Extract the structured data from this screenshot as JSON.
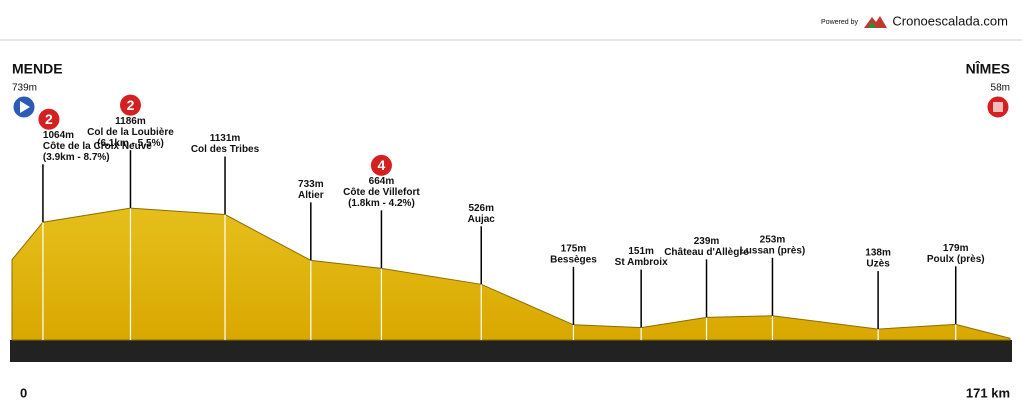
{
  "header": {
    "powered_by": "Powered by",
    "brand": "Cronoescalada.com"
  },
  "chart_data": {
    "type": "profile",
    "xlim": [
      0,
      171
    ],
    "ylim": [
      0,
      1300
    ],
    "color": "#e6bf1c",
    "points": [
      {
        "km": 0,
        "altitude": 739,
        "altitude_label": "739m",
        "name": "MENDE"
      },
      {
        "km": 5.3,
        "altitude": 1064,
        "altitude_label": "1064m",
        "name": "Côte de la Croix Neuve",
        "detail": "(3.9km - 8.7%)",
        "category": "2"
      },
      {
        "km": 20.3,
        "altitude": 1186,
        "altitude_label": "1186m",
        "name": "Col de la Loubière",
        "detail": "(6.1km - 5.5%)",
        "category": "2"
      },
      {
        "km": 36.5,
        "altitude": 1131,
        "altitude_label": "1131m",
        "name": "Col des Tribes"
      },
      {
        "km": 51.2,
        "altitude": 733,
        "altitude_label": "733m",
        "name": "Altier"
      },
      {
        "km": 63.3,
        "altitude": 664,
        "altitude_label": "664m",
        "name": "Côte de Villefort",
        "detail": "(1.8km - 4.2%)",
        "category": "4"
      },
      {
        "km": 80.4,
        "altitude": 526,
        "altitude_label": "526m",
        "name": "Aujac"
      },
      {
        "km": 96.2,
        "altitude": 175,
        "altitude_label": "175m",
        "name": "Bessèges"
      },
      {
        "km": 107.8,
        "altitude": 151,
        "altitude_label": "151m",
        "name": "St Ambroix"
      },
      {
        "km": 119,
        "altitude": 239,
        "altitude_label": "239m",
        "name": "Château d'Allègre"
      },
      {
        "km": 130.3,
        "altitude": 253,
        "altitude_label": "253m",
        "name": "Lussan (près)"
      },
      {
        "km": 148.4,
        "altitude": 138,
        "altitude_label": "138m",
        "name": "Uzès"
      },
      {
        "km": 161.7,
        "altitude": 179,
        "altitude_label": "179m",
        "name": "Poulx (près)"
      },
      {
        "km": 171,
        "km_label": "171 km",
        "altitude": 58,
        "altitude_label": "58m",
        "name": "NÎMES"
      }
    ]
  }
}
